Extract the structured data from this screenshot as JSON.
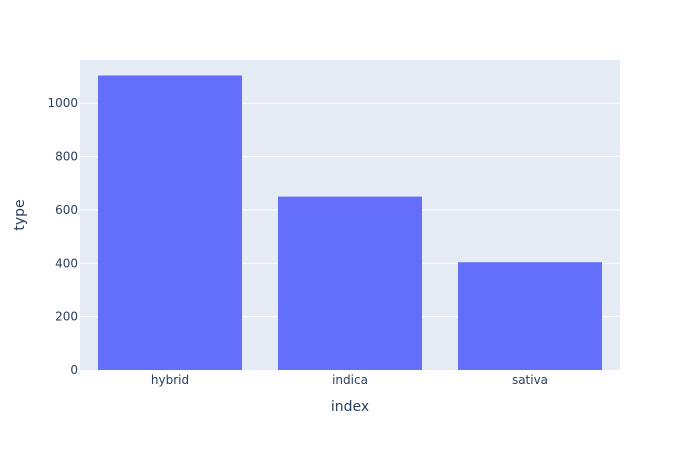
{
  "chart_data": {
    "type": "bar",
    "categories": [
      "hybrid",
      "indica",
      "sativa"
    ],
    "values": [
      1104,
      650,
      404
    ],
    "xlabel": "index",
    "ylabel": "type",
    "ylim": [
      0,
      1162
    ],
    "yticks": [
      0,
      200,
      400,
      600,
      800,
      1000
    ],
    "grid": true,
    "legend": "none"
  },
  "colors": {
    "bar": "#636efa",
    "plot_background": "#e5ecf6",
    "gridline": "#ffffff",
    "text": "#2a3f5f"
  }
}
